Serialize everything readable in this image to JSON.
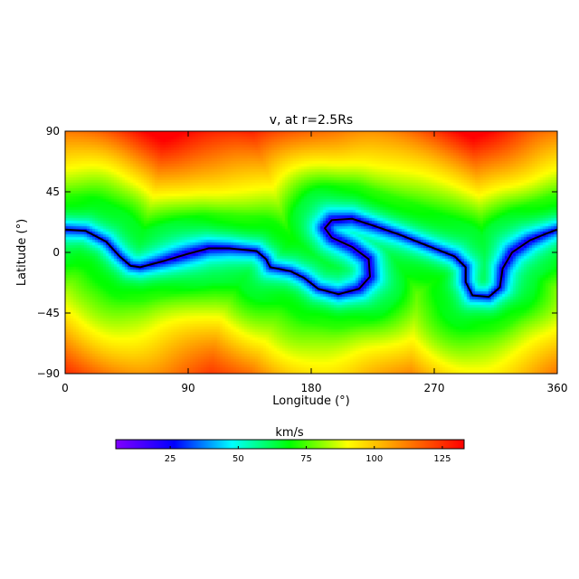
{
  "chart_data": {
    "type": "heatmap",
    "title": "v, at r=2.5Rs",
    "xlabel": "Longitude (°)",
    "ylabel": "Latitude (°)",
    "xlim": [
      0,
      360
    ],
    "ylim": [
      -90,
      90
    ],
    "x_ticks": [
      "0",
      "90",
      "180",
      "270",
      "360"
    ],
    "y_ticks": [
      "90",
      "45",
      "0",
      "−45",
      "−90"
    ],
    "colorbar": {
      "label": "km/s",
      "range": [
        5,
        133
      ],
      "ticks": [
        "25",
        "50",
        "75",
        "100",
        "125"
      ],
      "tick_values": [
        25,
        50,
        75,
        100,
        125
      ],
      "colormap": [
        "#8000ff",
        "#0000ff",
        "#00ffff",
        "#00ff00",
        "#ffff00",
        "#ff8000",
        "#ff0000"
      ]
    },
    "neutral_line": {
      "color": "#000000",
      "points": [
        [
          0,
          17
        ],
        [
          15,
          16
        ],
        [
          30,
          8
        ],
        [
          40,
          -3
        ],
        [
          48,
          -10
        ],
        [
          55,
          -11
        ],
        [
          70,
          -7
        ],
        [
          90,
          -1
        ],
        [
          105,
          3
        ],
        [
          120,
          3
        ],
        [
          140,
          1
        ],
        [
          147,
          -5
        ],
        [
          150,
          -11
        ],
        [
          165,
          -14
        ],
        [
          175,
          -19
        ],
        [
          185,
          -27
        ],
        [
          200,
          -31
        ],
        [
          215,
          -27
        ],
        [
          223,
          -18
        ],
        [
          222,
          -5
        ],
        [
          210,
          4
        ],
        [
          195,
          11
        ],
        [
          190,
          18
        ],
        [
          195,
          24
        ],
        [
          210,
          25
        ],
        [
          225,
          20
        ],
        [
          245,
          13
        ],
        [
          265,
          5
        ],
        [
          285,
          -3
        ],
        [
          293,
          -11
        ],
        [
          293,
          -22
        ],
        [
          298,
          -32
        ],
        [
          310,
          -33
        ],
        [
          318,
          -26
        ],
        [
          320,
          -12
        ],
        [
          327,
          0
        ],
        [
          340,
          9
        ],
        [
          352,
          14
        ],
        [
          360,
          17
        ]
      ]
    },
    "field_model": {
      "description": "v increases away from the neutral line toward both poles",
      "v_at_line": 20,
      "v_pole_north": 133,
      "v_pole_south": 120
    }
  }
}
